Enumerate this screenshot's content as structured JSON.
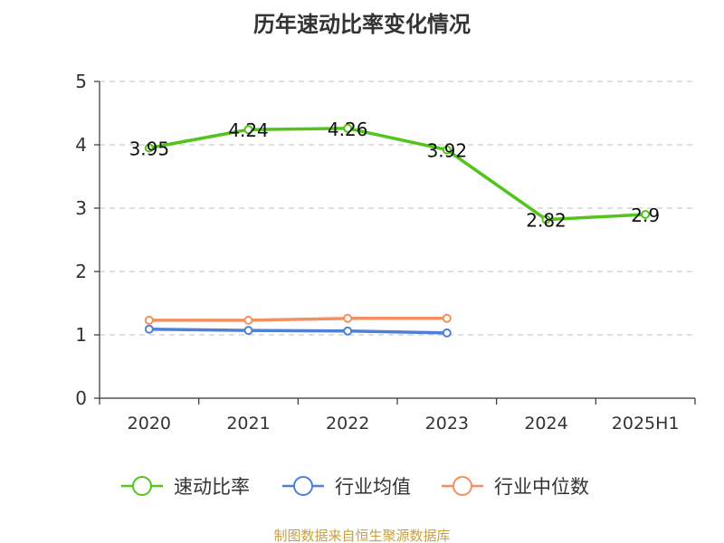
{
  "chart_data": {
    "type": "line",
    "title": "历年速动比率变化情况",
    "categories": [
      "2020",
      "2021",
      "2022",
      "2023",
      "2024",
      "2025H1"
    ],
    "ylim": [
      0,
      5
    ],
    "yticks": [
      0,
      1,
      2,
      3,
      4,
      5
    ],
    "grid": "horizontal dashed",
    "legend_position": "bottom",
    "series": [
      {
        "name": "速动比率",
        "color": "#52c41a",
        "values": [
          3.95,
          4.24,
          4.26,
          3.92,
          2.82,
          2.9
        ],
        "labels": [
          "3.95",
          "4.24",
          "4.26",
          "3.92",
          "2.82",
          "2.9"
        ]
      },
      {
        "name": "行业均值",
        "color": "#4f7fd6",
        "values": [
          1.09,
          1.07,
          1.06,
          1.03,
          null,
          null
        ]
      },
      {
        "name": "行业中位数",
        "color": "#f39060",
        "values": [
          1.23,
          1.23,
          1.26,
          1.26,
          null,
          null
        ]
      }
    ],
    "source": "制图数据来自恒生聚源数据库"
  }
}
